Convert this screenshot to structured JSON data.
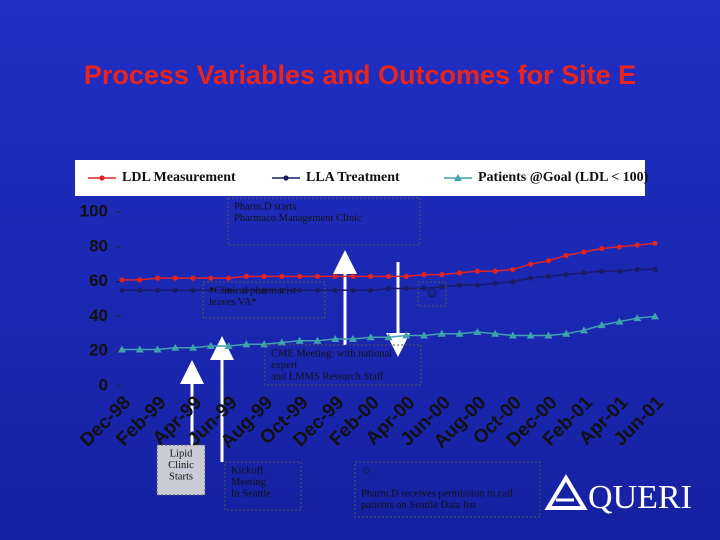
{
  "chart_data": {
    "type": "line",
    "title": "Process Variables and Outcomes for Site E",
    "categories": [
      "Dec-98",
      null,
      "Feb-99",
      null,
      "Apr-99",
      null,
      "Jun-99",
      null,
      "Aug-99",
      null,
      "Oct-99",
      null,
      "Dec-99",
      null,
      "Feb-00",
      null,
      "Apr-00",
      null,
      "Jun-00",
      null,
      "Aug-00",
      null,
      "Oct-00",
      null,
      "Dec-00",
      null,
      "Feb-01",
      null,
      "Apr-01",
      null,
      "Jun-01"
    ],
    "series": [
      {
        "name": "LDL Measurement",
        "color": "#e02424",
        "marker": "circle",
        "values": [
          61,
          61,
          62,
          62,
          62,
          62,
          62,
          63,
          63,
          63,
          63,
          63,
          63,
          63,
          63,
          63,
          63,
          64,
          64,
          65,
          66,
          66,
          67,
          70,
          72,
          75,
          77,
          79,
          80,
          81,
          82
        ]
      },
      {
        "name": "LLA Treatment",
        "color": "#1b1b66",
        "marker": "circle",
        "values": [
          55,
          55,
          55,
          55,
          55,
          55,
          55,
          55,
          55,
          55,
          55,
          55,
          55,
          55,
          55,
          56,
          56,
          56,
          57,
          58,
          58,
          59,
          60,
          62,
          63,
          64,
          65,
          66,
          66,
          67,
          67
        ]
      },
      {
        "name": "Patients @Goal (LDL < 100)",
        "color": "#3fa3ad",
        "marker": "triangle",
        "values": [
          21,
          21,
          21,
          22,
          22,
          23,
          23,
          24,
          24,
          25,
          26,
          26,
          27,
          27,
          28,
          28,
          29,
          29,
          30,
          30,
          31,
          30,
          29,
          29,
          29,
          30,
          32,
          35,
          37,
          39,
          40
        ]
      }
    ],
    "ylim": [
      0,
      100
    ],
    "yticks": [
      0,
      20,
      40,
      60,
      80,
      100
    ],
    "grid": false,
    "legend": "top",
    "annotations": [
      {
        "lines": [
          "Pharm.D starts",
          "Pharmaco.Management  Clinic"
        ]
      },
      {
        "lines": [
          "*Clinical pharmacist",
          "leaves VA*"
        ]
      },
      {
        "lines": [
          "☺"
        ]
      },
      {
        "lines": [
          "CME Meeting: with national",
          "expert",
          "and LMMS Research Staff"
        ]
      },
      {
        "lines": [
          "Lipid",
          "Clinic",
          "Starts"
        ]
      },
      {
        "lines": [
          "Kickoff",
          "Meeting",
          "In Seattle"
        ]
      },
      {
        "lines": [
          "☺",
          "",
          "Pharm.D receives permission to call",
          "patients on Seattle Data list"
        ]
      }
    ],
    "logo": "QUERI"
  }
}
